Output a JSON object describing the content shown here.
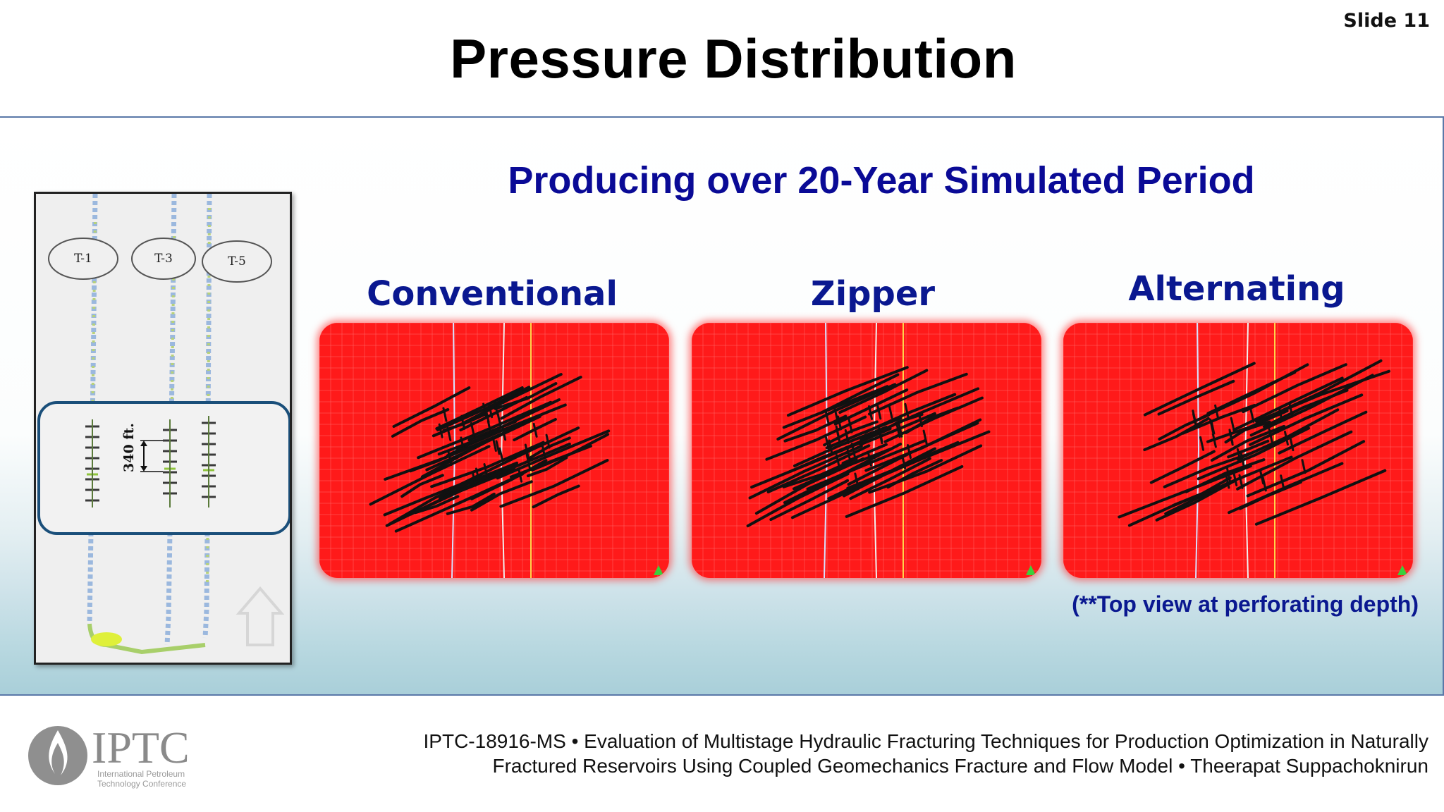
{
  "slide_number": "Slide 11",
  "title": "Pressure Distribution",
  "subtitle": "Producing over 20-Year Simulated Period",
  "wellbore_figure": {
    "laterals": [
      "T-1",
      "T-3",
      "T-5"
    ],
    "spacing_label": "340 ft."
  },
  "panels": [
    {
      "label": "Conventional"
    },
    {
      "label": "Zipper"
    },
    {
      "label": "Alternating"
    }
  ],
  "footnote": "(**Top view at perforating depth)",
  "logo": {
    "text": "IPTC",
    "sub_line1": "International Petroleum",
    "sub_line2": "Technology Conference"
  },
  "citation": {
    "line1": "IPTC-18916-MS • Evaluation of Multistage Hydraulic Fracturing Techniques for Production Optimization in Naturally",
    "line2": "Fractured Reservoirs Using Coupled Geomechanics Fracture and Flow Model • Theerapat Suppachoknirun"
  },
  "colors": {
    "title": "#000000",
    "subtitle": "#0a0a96",
    "panel_label": "#0a1890",
    "panel_fill": "#ff1a1a",
    "fracture": "#111111",
    "band_border": "#5a78a8"
  }
}
